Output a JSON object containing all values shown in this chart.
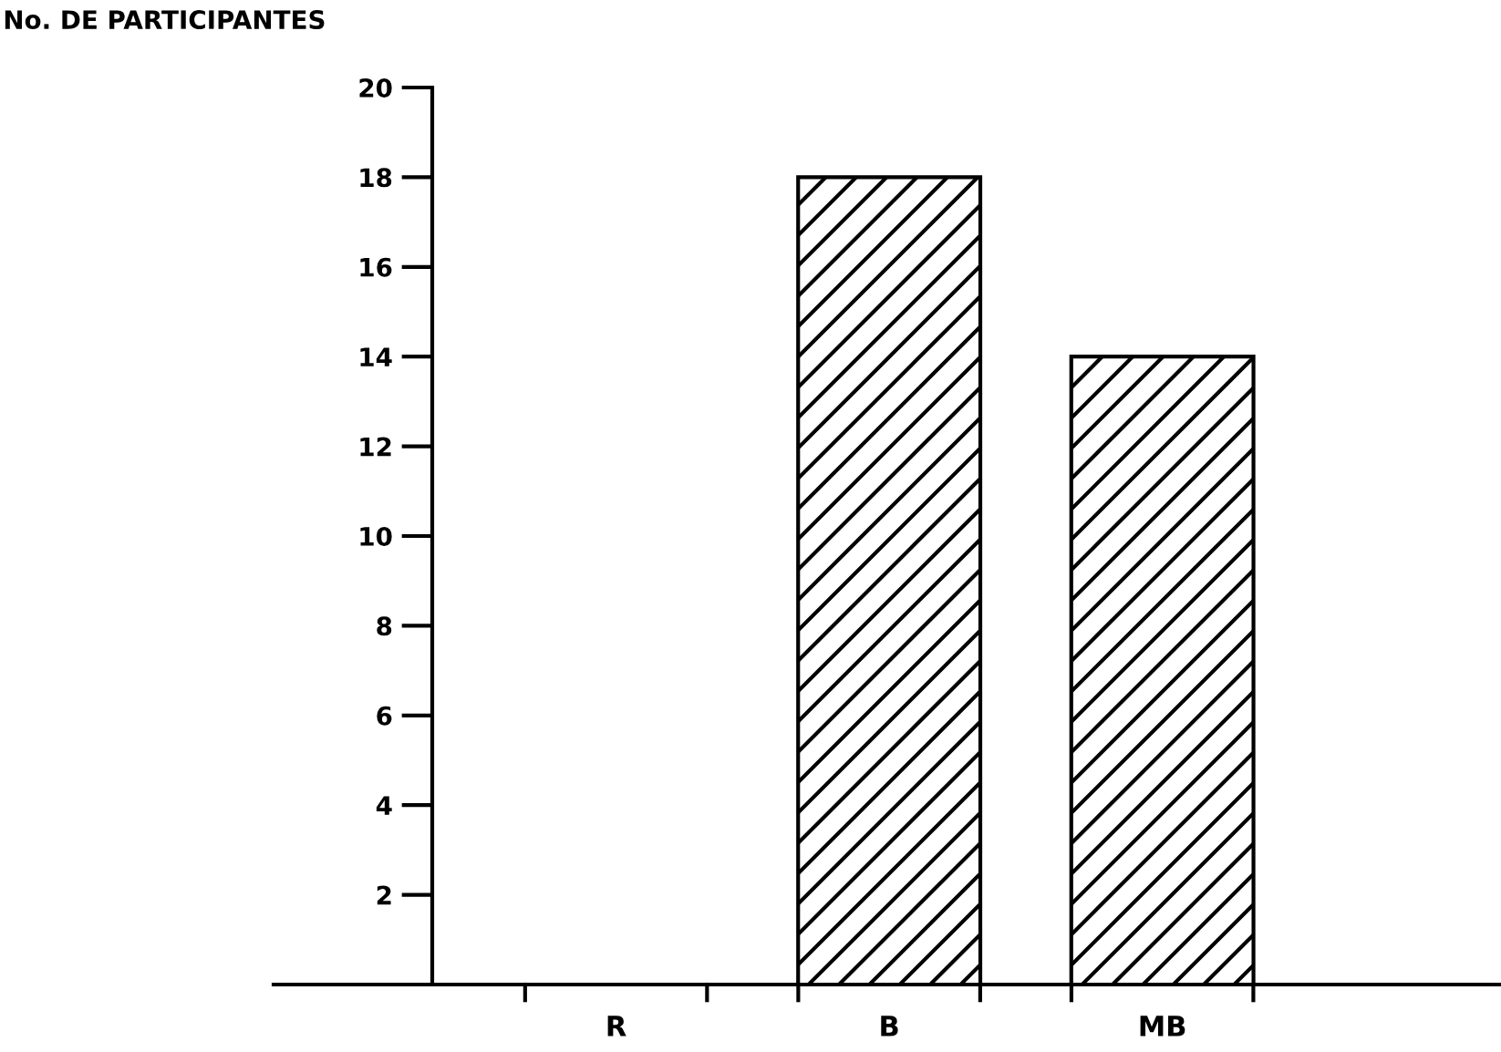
{
  "chart_data": {
    "type": "bar",
    "ylabel": "No. DE PARTICIPANTES",
    "categories": [
      "R",
      "B",
      "MB"
    ],
    "values": [
      0,
      18,
      14
    ],
    "color": "#000000",
    "ylim": [
      0,
      20
    ],
    "yticks": [
      2,
      4,
      6,
      8,
      10,
      12,
      14,
      16,
      18,
      20
    ],
    "grid": false,
    "legend": false
  }
}
